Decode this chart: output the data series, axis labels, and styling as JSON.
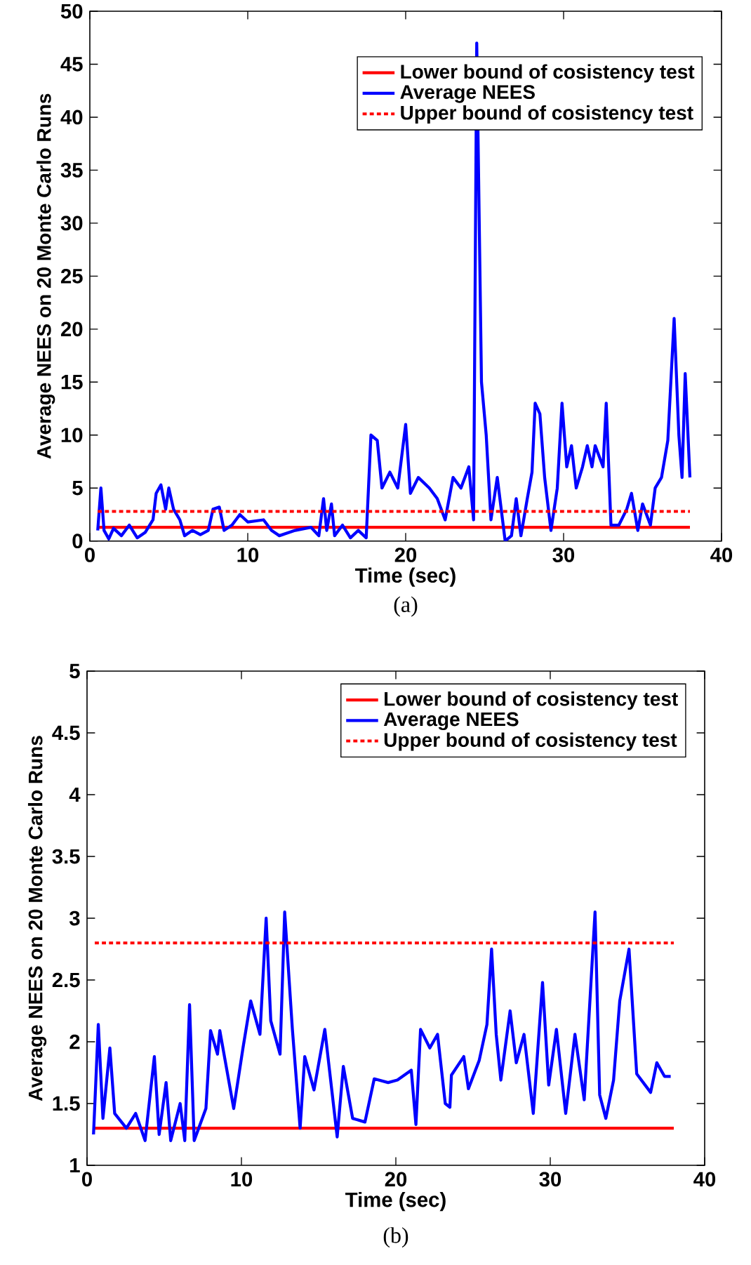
{
  "chart_data": [
    {
      "type": "line",
      "xlabel": "Time (sec)",
      "ylabel": "Average NEES on 20 Monte Carlo Runs",
      "xlim": [
        0,
        40
      ],
      "ylim": [
        0,
        50
      ],
      "xticks": [
        0,
        10,
        20,
        30,
        40
      ],
      "yticks": [
        0,
        5,
        10,
        15,
        20,
        25,
        30,
        35,
        40,
        45,
        50
      ],
      "legend": "top right",
      "annotations": [
        "(a)"
      ],
      "series": [
        {
          "name": "Lower bound of cosistency test",
          "color": "#ff0000",
          "line_style": "solid",
          "x": [
            0.5,
            38
          ],
          "values": [
            1.3,
            1.3
          ]
        },
        {
          "name": "Average NEES",
          "color": "#0000ff",
          "line_style": "solid",
          "x": [
            0.5,
            0.7,
            0.9,
            1.2,
            1.5,
            2,
            2.5,
            3,
            3.5,
            4,
            4.2,
            4.5,
            4.8,
            5,
            5.3,
            5.7,
            6,
            6.5,
            7,
            7.5,
            7.8,
            8.2,
            8.5,
            9,
            9.5,
            10,
            11,
            11.5,
            12,
            13,
            14,
            14.5,
            14.8,
            15,
            15.3,
            15.5,
            16,
            16.5,
            17,
            17.5,
            17.8,
            18.2,
            18.5,
            19,
            19.5,
            20,
            20.3,
            20.8,
            21.5,
            22,
            22.5,
            23,
            23.5,
            24,
            24.3,
            24.5,
            24.8,
            25.1,
            25.4,
            25.8,
            26.3,
            26.7,
            27,
            27.3,
            27.7,
            28,
            28.2,
            28.5,
            28.8,
            29.2,
            29.6,
            29.9,
            30.2,
            30.5,
            30.8,
            31.2,
            31.5,
            31.8,
            32,
            32.5,
            32.7,
            33,
            33.5,
            34,
            34.3,
            34.7,
            35,
            35.5,
            35.8,
            36.2,
            36.6,
            37,
            37.3,
            37.5,
            37.7,
            38
          ],
          "values": [
            1,
            5,
            1,
            0.2,
            1.2,
            0.5,
            1.5,
            0.3,
            0.8,
            2,
            4.5,
            5.3,
            3,
            5,
            3,
            2,
            0.5,
            1,
            0.6,
            1,
            3,
            3.2,
            1,
            1.5,
            2.5,
            1.8,
            2,
            1,
            0.5,
            1,
            1.3,
            0.5,
            4,
            1,
            3.5,
            0.5,
            1.5,
            0.3,
            1,
            0.3,
            10,
            9.5,
            5,
            6.5,
            5,
            11,
            4.5,
            6,
            5,
            4,
            2,
            6,
            5,
            7,
            2,
            47,
            15,
            10,
            2,
            6,
            0,
            0.5,
            4,
            0.5,
            4,
            6.5,
            13,
            12,
            6,
            1,
            5,
            13,
            7,
            9,
            5,
            7,
            9,
            7,
            9,
            7,
            13,
            1.5,
            1.5,
            3,
            4.5,
            1,
            3.5,
            1.5,
            5,
            6,
            9.5,
            21,
            10,
            6,
            15.8,
            6
          ]
        },
        {
          "name": "Upper  bound of cosistency test",
          "color": "#ff0000",
          "line_style": "dotted",
          "x": [
            0.5,
            38
          ],
          "values": [
            2.8,
            2.8
          ]
        }
      ]
    },
    {
      "type": "line",
      "xlabel": "Time (sec)",
      "ylabel": "Average NEES on 20 Monte Carlo Runs",
      "xlim": [
        0,
        40
      ],
      "ylim": [
        1,
        5
      ],
      "xticks": [
        0,
        10,
        20,
        30,
        40
      ],
      "yticks": [
        1,
        1.5,
        2,
        2.5,
        3,
        3.5,
        4,
        4.5,
        5
      ],
      "legend": "top right",
      "annotations": [
        "(b)"
      ],
      "series": [
        {
          "name": "Lower bound of cosistency test",
          "color": "#ff0000",
          "line_style": "solid",
          "x": [
            0.5,
            38
          ],
          "values": [
            1.3,
            1.3
          ]
        },
        {
          "name": "Average NEES",
          "color": "#0000ff",
          "line_style": "solid",
          "x": [
            0.42,
            0.73,
            1.03,
            1.48,
            1.79,
            2.55,
            3.15,
            3.76,
            4.36,
            4.67,
            5.12,
            5.42,
            6.03,
            6.33,
            6.64,
            6.94,
            7.7,
            8.0,
            8.45,
            8.6,
            9.5,
            10.1,
            10.6,
            11.2,
            11.6,
            11.9,
            12.5,
            12.8,
            13.3,
            13.8,
            14.1,
            14.7,
            15.4,
            16.2,
            16.6,
            17.2,
            18.0,
            18.6,
            19.5,
            20.1,
            21.0,
            21.3,
            21.6,
            22.2,
            22.7,
            23.2,
            23.5,
            23.6,
            24.4,
            24.7,
            25.4,
            25.9,
            26.2,
            26.5,
            26.8,
            27.4,
            27.8,
            28.3,
            28.9,
            29.5,
            29.9,
            30.4,
            31.0,
            31.6,
            32.2,
            32.9,
            33.2,
            33.6,
            34.1,
            34.5,
            35.1,
            35.6,
            36.5,
            36.9,
            37.4,
            37.8
          ],
          "values": [
            1.25,
            2.14,
            1.38,
            1.95,
            1.42,
            1.3,
            1.42,
            1.2,
            1.88,
            1.25,
            1.67,
            1.2,
            1.5,
            1.2,
            2.3,
            1.2,
            1.46,
            2.09,
            1.9,
            2.09,
            1.46,
            1.95,
            2.33,
            2.06,
            3.0,
            2.17,
            1.9,
            3.05,
            2.1,
            1.3,
            1.88,
            1.61,
            2.1,
            1.23,
            1.8,
            1.38,
            1.35,
            1.7,
            1.67,
            1.69,
            1.77,
            1.33,
            2.1,
            1.95,
            2.06,
            1.5,
            1.47,
            1.73,
            1.88,
            1.62,
            1.85,
            2.14,
            2.75,
            2.06,
            1.69,
            2.25,
            1.83,
            2.06,
            1.42,
            2.48,
            1.65,
            2.1,
            1.42,
            2.06,
            1.53,
            3.05,
            1.57,
            1.38,
            1.69,
            2.33,
            2.75,
            1.74,
            1.59,
            1.83,
            1.72,
            1.72
          ]
        },
        {
          "name": "Upper bound of cosistency test",
          "color": "#ff0000",
          "line_style": "dotted",
          "x": [
            0.5,
            38
          ],
          "values": [
            2.8,
            2.8
          ]
        }
      ]
    }
  ]
}
